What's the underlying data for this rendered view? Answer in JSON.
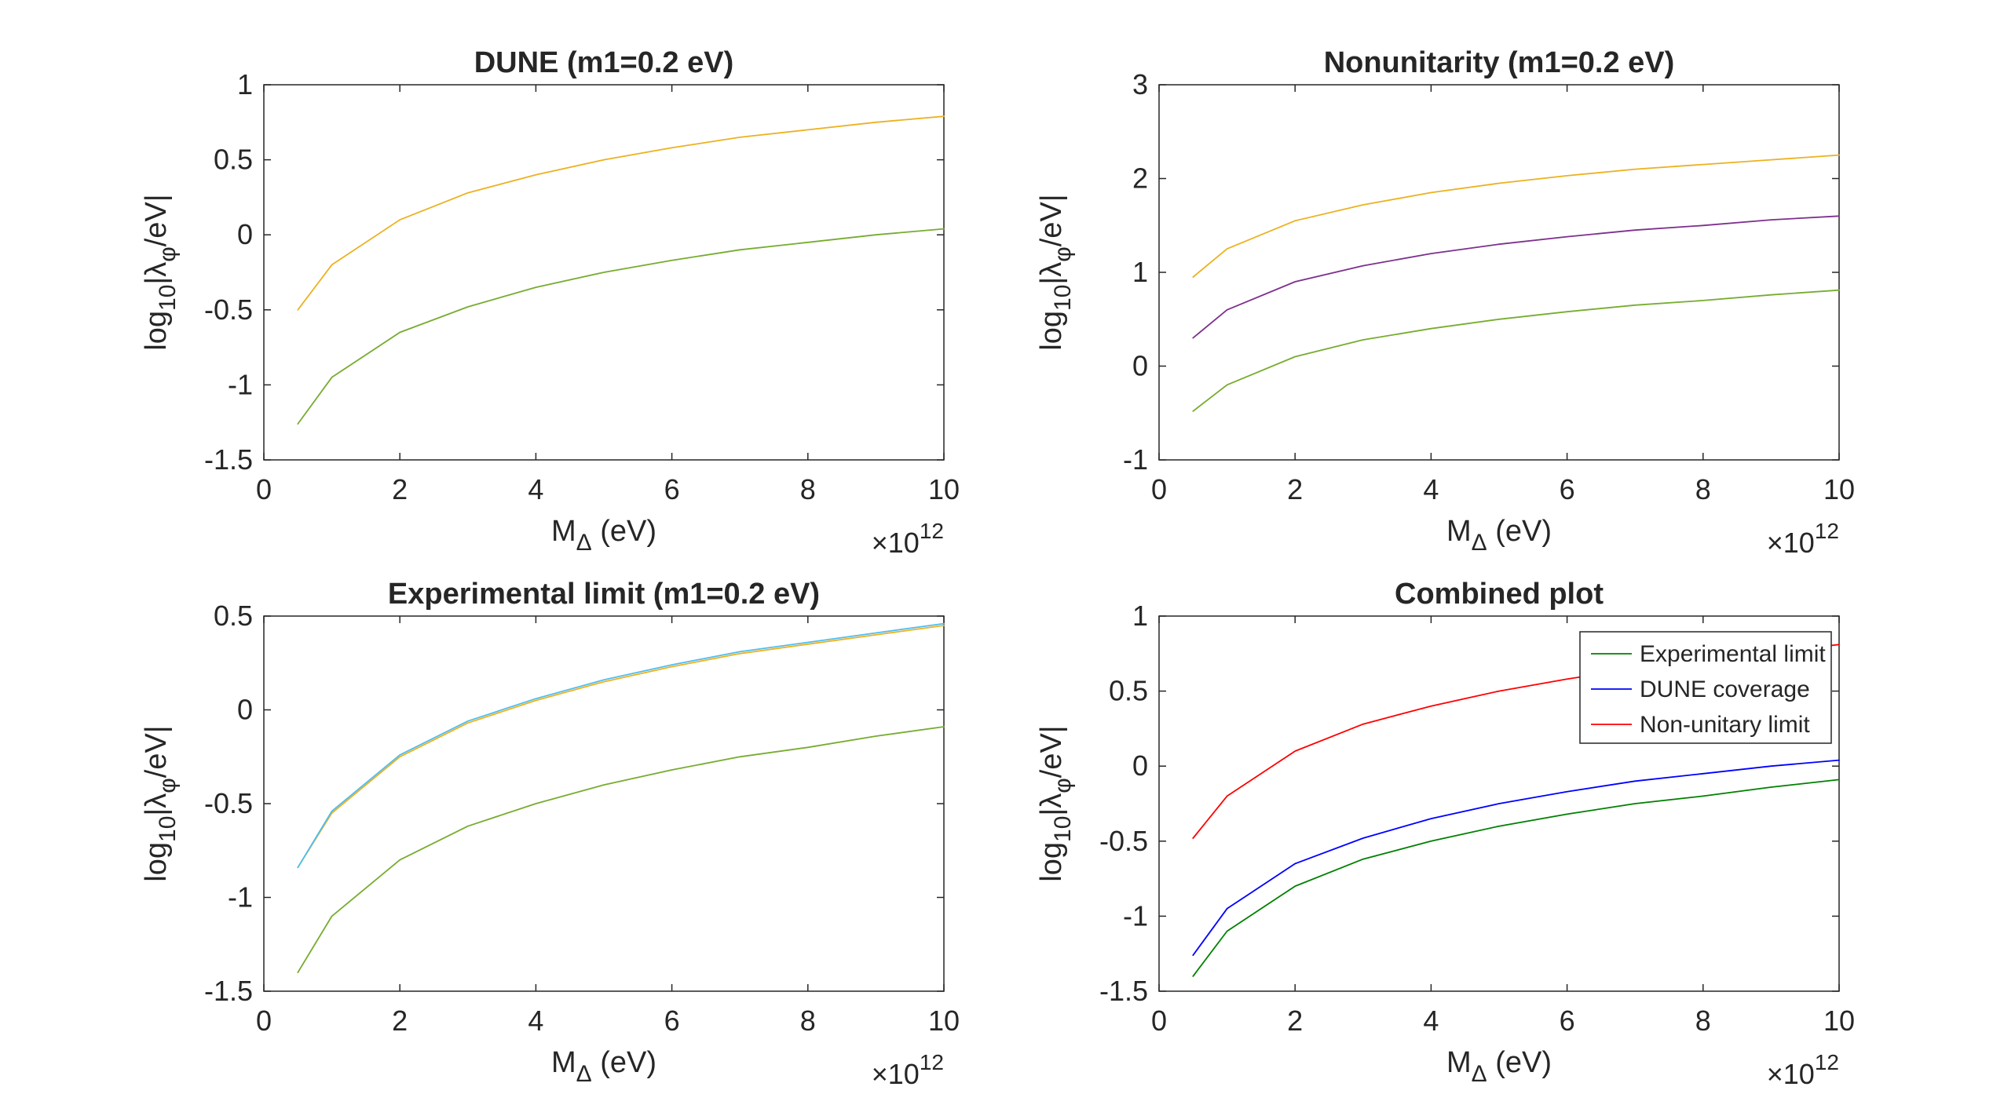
{
  "chart_data": [
    {
      "type": "line",
      "title": "DUNE (m1=0.2 eV)",
      "xlabel_main": "M",
      "xlabel_sub": "Δ",
      "xlabel_unit": " (eV)",
      "ylabel_prefix": "log",
      "ylabel_sub1": "10",
      "ylabel_mid": "|λ",
      "ylabel_sub2": "φ",
      "ylabel_suffix": "/eV|",
      "x_exponent_label": "×10",
      "x_exponent": "12",
      "xlim": [
        0,
        10
      ],
      "ylim": [
        -1.5,
        1
      ],
      "xticks": [
        "0",
        "2",
        "4",
        "6",
        "8",
        "10"
      ],
      "yticks": [
        "-1.5",
        "-1",
        "-0.5",
        "0",
        "0.5",
        "1"
      ],
      "x": [
        0.5,
        1,
        2,
        3,
        4,
        5,
        6,
        7,
        8,
        9,
        10
      ],
      "series": [
        {
          "color": "#EDB120",
          "values": [
            -0.5,
            -0.2,
            0.1,
            0.28,
            0.4,
            0.5,
            0.58,
            0.65,
            0.7,
            0.75,
            0.79
          ]
        },
        {
          "color": "#77AC30",
          "values": [
            -1.26,
            -0.95,
            -0.65,
            -0.48,
            -0.35,
            -0.25,
            -0.17,
            -0.1,
            -0.05,
            0.0,
            0.04
          ]
        }
      ]
    },
    {
      "type": "line",
      "title": "Nonunitarity (m1=0.2 eV)",
      "xlabel_main": "M",
      "xlabel_sub": "Δ",
      "xlabel_unit": " (eV)",
      "ylabel_prefix": "log",
      "ylabel_sub1": "10",
      "ylabel_mid": "|λ",
      "ylabel_sub2": "φ",
      "ylabel_suffix": "/eV|",
      "x_exponent_label": "×10",
      "x_exponent": "12",
      "xlim": [
        0,
        10
      ],
      "ylim": [
        -1,
        3
      ],
      "xticks": [
        "0",
        "2",
        "4",
        "6",
        "8",
        "10"
      ],
      "yticks": [
        "-1",
        "0",
        "1",
        "2",
        "3"
      ],
      "x": [
        0.5,
        1,
        2,
        3,
        4,
        5,
        6,
        7,
        8,
        9,
        10
      ],
      "series": [
        {
          "color": "#EDB120",
          "values": [
            0.95,
            1.25,
            1.55,
            1.72,
            1.85,
            1.95,
            2.03,
            2.1,
            2.15,
            2.2,
            2.25
          ]
        },
        {
          "color": "#7E2F8E",
          "values": [
            0.3,
            0.6,
            0.9,
            1.07,
            1.2,
            1.3,
            1.38,
            1.45,
            1.5,
            1.56,
            1.6
          ]
        },
        {
          "color": "#77AC30",
          "values": [
            -0.48,
            -0.2,
            0.1,
            0.28,
            0.4,
            0.5,
            0.58,
            0.65,
            0.7,
            0.76,
            0.81
          ]
        }
      ]
    },
    {
      "type": "line",
      "title": "Experimental limit (m1=0.2 eV)",
      "xlabel_main": "M",
      "xlabel_sub": "Δ",
      "xlabel_unit": " (eV)",
      "ylabel_prefix": "log",
      "ylabel_sub1": "10",
      "ylabel_mid": "|λ",
      "ylabel_sub2": "φ",
      "ylabel_suffix": "/eV|",
      "x_exponent_label": "×10",
      "x_exponent": "12",
      "xlim": [
        0,
        10
      ],
      "ylim": [
        -1.5,
        0.5
      ],
      "xticks": [
        "0",
        "2",
        "4",
        "6",
        "8",
        "10"
      ],
      "yticks": [
        "-1.5",
        "-1",
        "-0.5",
        "0",
        "0.5"
      ],
      "x": [
        0.5,
        1,
        2,
        3,
        4,
        5,
        6,
        7,
        8,
        9,
        10
      ],
      "series": [
        {
          "color": "#EDB120",
          "values": [
            -0.84,
            -0.55,
            -0.25,
            -0.07,
            0.05,
            0.15,
            0.23,
            0.3,
            0.35,
            0.4,
            0.45
          ]
        },
        {
          "color": "#4DBEEE",
          "values": [
            -0.84,
            -0.54,
            -0.24,
            -0.06,
            0.06,
            0.16,
            0.24,
            0.31,
            0.36,
            0.41,
            0.46
          ]
        },
        {
          "color": "#77AC30",
          "values": [
            -1.4,
            -1.1,
            -0.8,
            -0.62,
            -0.5,
            -0.4,
            -0.32,
            -0.25,
            -0.2,
            -0.14,
            -0.09
          ]
        }
      ]
    },
    {
      "type": "line",
      "title": "Combined plot",
      "xlabel_main": "M",
      "xlabel_sub": "Δ",
      "xlabel_unit": " (eV)",
      "ylabel_prefix": "log",
      "ylabel_sub1": "10",
      "ylabel_mid": "|λ",
      "ylabel_sub2": "φ",
      "ylabel_suffix": "/eV|",
      "x_exponent_label": "×10",
      "x_exponent": "12",
      "xlim": [
        0,
        10
      ],
      "ylim": [
        -1.5,
        1
      ],
      "xticks": [
        "0",
        "2",
        "4",
        "6",
        "8",
        "10"
      ],
      "yticks": [
        "-1.5",
        "-1",
        "-0.5",
        "0",
        "0.5",
        "1"
      ],
      "legend_position": "top-right",
      "x": [
        0.5,
        1,
        2,
        3,
        4,
        5,
        6,
        7,
        8,
        9,
        10
      ],
      "series": [
        {
          "name": "Experimental limit",
          "color": "#008000",
          "values": [
            -1.4,
            -1.1,
            -0.8,
            -0.62,
            -0.5,
            -0.4,
            -0.32,
            -0.25,
            -0.2,
            -0.14,
            -0.09
          ]
        },
        {
          "name": "DUNE coverage",
          "color": "#0000FF",
          "values": [
            -1.26,
            -0.95,
            -0.65,
            -0.48,
            -0.35,
            -0.25,
            -0.17,
            -0.1,
            -0.05,
            0.0,
            0.04
          ]
        },
        {
          "name": "Non-unitary limit",
          "color": "#FF0000",
          "values": [
            -0.48,
            -0.2,
            0.1,
            0.28,
            0.4,
            0.5,
            0.58,
            0.65,
            0.7,
            0.76,
            0.81
          ]
        }
      ]
    }
  ]
}
